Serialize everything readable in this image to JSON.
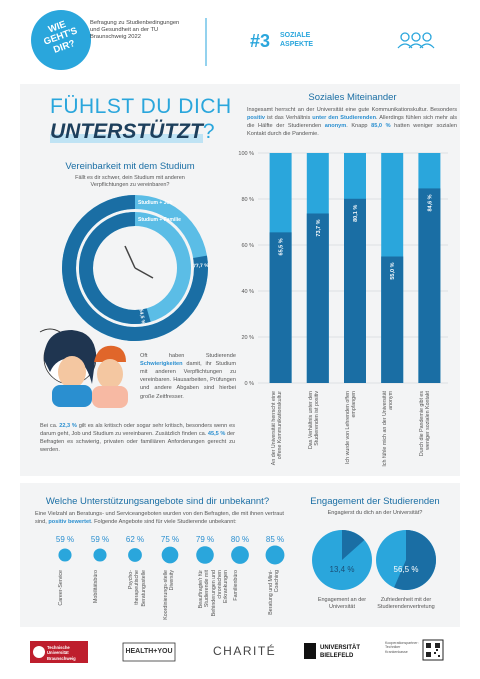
{
  "header": {
    "badge": "WIE GEHT'S DIR?",
    "survey": "Befragung zu Studienbedingungen und Gesundheit an der TU Braunschweig 2022",
    "number": "#3",
    "topic": "SOZIALE ASPEKTE"
  },
  "headline": {
    "line1": "FÜHLST DU DICH",
    "line2": "UNTERSTÜTZT",
    "mark": "?"
  },
  "compatibility": {
    "title": "Vereinbarkeit mit dem Studium",
    "question": "Fällt es dir schwer, dein Studium mit anderen Verpflichtungen zu vereinbaren?",
    "speech": [
      "Oft haben Studierende ",
      "Schwierigkeiten",
      " damit, ihr Studium mit anderen Verpflichtungen zu vereinbaren. Hausarbeiten, Prüfungen und andere Abgaben sind hierbei große Zeitfresser."
    ],
    "text": [
      "Bei ca. ",
      "22,3 %",
      " gilt es als kritisch oder sogar sehr kritisch, besonders wenn es darum geht, Job und Studium zu vereinbaren. Zusätzlich finden ca. ",
      "45,5 %",
      " der Befragten es schwierig, privaten oder familiären Anforderungen gerecht zu werden."
    ]
  },
  "social": {
    "title": "Soziales Miteinander",
    "text": [
      "Insgesamt herrscht an der Universität eine gute Kommunikationskultur. Besonders ",
      "positiv",
      " ist das Verhältnis ",
      "unter den Studierenden",
      ". Allerdings fühlen sich mehr als die Hälfte der Studierenden ",
      "anonym",
      ". Knapp ",
      "85,0 %",
      " hatten weniger sozialen Kontakt durch die Pandemie."
    ]
  },
  "offers": {
    "title": "Welche Unterstützungsangebote sind dir unbekannt?",
    "text": [
      "Eine Vielzahl an Beratungs- und Serviceangeboten wurden von den Befragten, die mit ihnen vertraut sind, ",
      "positiv bewertet",
      ". Folgende Angebote sind für viele Studierende unbekannt:"
    ]
  },
  "engagement": {
    "title": "Engagement der Studierenden",
    "question": "Engagierst du dich an der Universität?"
  },
  "footer": {
    "tu": "Technische Universität Braunschweig",
    "health": "HEALTH+YOU",
    "charite": "CHARITÉ",
    "bielefeld": "UNIVERSITÄT BIELEFELD",
    "partner": "Kooperationspartner: Techniker Krankenkasse"
  },
  "chart_data": [
    {
      "type": "radial",
      "track_color": "#5bbde6",
      "series": [
        {
          "name": "Studium + Job",
          "color": "#1a6ea4",
          "values": [
            77.7
          ],
          "value_labels": [
            "77,7 %"
          ]
        },
        {
          "name": "Studium + Familie",
          "color": "#1a6ea4",
          "values": [
            54.5
          ],
          "value_labels": [
            "54,5 %"
          ]
        }
      ],
      "xlim": [
        0,
        100
      ]
    },
    {
      "type": "bar",
      "track_color": "#2aa6dc",
      "color": "#1a6ea4",
      "categories": [
        "An der Universität herrscht eine offene Kommunikationskultur",
        "Das Verhältnis unter den Studierenden ist positiv",
        "Ich wurde von Lehrenden offen empfangen",
        "Ich fühle mich an der Universität anonym",
        "Durch die Pandemie gibt es weniger sozialen Kontakt"
      ],
      "values": [
        65.5,
        73.7,
        80.1,
        55.0,
        84.6
      ],
      "value_labels": [
        "65,5 %",
        "73,7 %",
        "80,1 %",
        "55,0 %",
        "84,6 %"
      ],
      "ylim": [
        0,
        100
      ],
      "yticks": [
        {
          "value": 0,
          "label": "0 %"
        },
        {
          "value": 20,
          "label": "20 %"
        },
        {
          "value": 40,
          "label": "40 %"
        },
        {
          "value": 60,
          "label": "60 %"
        },
        {
          "value": 80,
          "label": "80 %"
        },
        {
          "value": 100,
          "label": "100 %"
        }
      ],
      "grid": true
    },
    {
      "type": "dots",
      "color": "#2aa6dc",
      "categories": [
        "Career-Service",
        "Mobilitätsbüro",
        "Psycho-therapeutische Beratungsstelle",
        "Koordinierungs-stelle Diversity",
        "Beauftragte/r für Studierende mit Behinderungen und chronischen Erkrankungen",
        "Familienbüro",
        "Beratung und Mini-Coaching"
      ],
      "values": [
        59,
        59,
        62,
        75,
        79,
        80,
        85
      ],
      "value_labels": [
        "59 %",
        "59 %",
        "62 %",
        "75 %",
        "79 %",
        "80 %",
        "85 %"
      ]
    },
    {
      "type": "pie",
      "track_color": "#2aa6dc",
      "color": "#1a6ea4",
      "categories": [
        "Engagement an der Universität",
        "Zufriedenheit mit der Studierendenvertretung"
      ],
      "values": [
        13.4,
        56.5
      ],
      "value_labels": [
        "13,4 %",
        "56,5 %"
      ]
    }
  ]
}
